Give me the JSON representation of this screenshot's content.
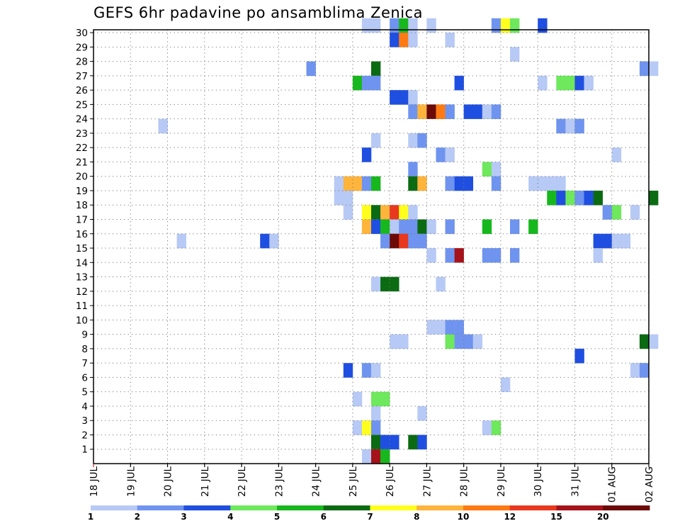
{
  "chart_data": {
    "type": "heatmap",
    "title": "GEFS 6hr padavine po ansamblima Zenica",
    "xlabel": "",
    "ylabel": "",
    "x_tick_labels": [
      "18 JUL",
      "19 JUL",
      "20 JUL",
      "21 JUL",
      "22 JUL",
      "23 JUL",
      "24 JUL",
      "25 JUL",
      "26 JUL",
      "27 JUL",
      "28 JUL",
      "29 JUL",
      "30 JUL",
      "31 JUL",
      "01 AUG",
      "02 AUG"
    ],
    "y_tick_labels": [
      "1",
      "2",
      "3",
      "4",
      "5",
      "6",
      "7",
      "8",
      "9",
      "10",
      "11",
      "12",
      "13",
      "14",
      "15",
      "16",
      "17",
      "18",
      "19",
      "20",
      "21",
      "22",
      "23",
      "24",
      "25",
      "26",
      "27",
      "28",
      "29",
      "30"
    ],
    "xlim": [
      0,
      60
    ],
    "ylim": [
      0,
      30
    ],
    "grid": true,
    "colorbar": {
      "colors": [
        "#b7c9f5",
        "#6f94ef",
        "#1f4fe0",
        "#6ee85c",
        "#17b81d",
        "#0b6b12",
        "#ffff1e",
        "#ffb43c",
        "#ff7a12",
        "#e8391e",
        "#a6121a",
        "#6b0a08"
      ],
      "labels": [
        "1",
        "2",
        "3",
        "4",
        "5",
        "6",
        "7",
        "8",
        "10",
        "12",
        "15",
        "20"
      ]
    },
    "cells": [
      [
        29,
        30,
        0
      ],
      [
        30,
        30,
        0
      ],
      [
        32,
        30,
        1
      ],
      [
        33,
        30,
        4
      ],
      [
        34,
        30,
        0
      ],
      [
        36,
        30,
        0
      ],
      [
        43,
        30,
        1
      ],
      [
        44,
        30,
        6
      ],
      [
        45,
        30,
        3
      ],
      [
        48,
        30,
        2
      ],
      [
        32,
        29,
        2
      ],
      [
        33,
        29,
        8
      ],
      [
        34,
        29,
        0
      ],
      [
        38,
        29,
        0
      ],
      [
        45,
        28,
        0
      ],
      [
        23,
        27,
        1
      ],
      [
        30,
        27,
        5
      ],
      [
        59,
        27,
        1
      ],
      [
        60,
        27,
        0
      ],
      [
        28,
        26,
        4
      ],
      [
        29,
        26,
        1
      ],
      [
        30,
        26,
        1
      ],
      [
        39,
        26,
        2
      ],
      [
        48,
        26,
        0
      ],
      [
        50,
        26,
        3
      ],
      [
        51,
        26,
        3
      ],
      [
        52,
        26,
        2
      ],
      [
        53,
        26,
        0
      ],
      [
        32,
        25,
        2
      ],
      [
        33,
        25,
        2
      ],
      [
        34,
        25,
        0
      ],
      [
        34,
        24,
        1
      ],
      [
        35,
        24,
        7
      ],
      [
        36,
        24,
        11
      ],
      [
        37,
        24,
        8
      ],
      [
        38,
        24,
        1
      ],
      [
        40,
        24,
        2
      ],
      [
        41,
        24,
        2
      ],
      [
        42,
        24,
        0
      ],
      [
        43,
        24,
        1
      ],
      [
        7,
        23,
        0
      ],
      [
        50,
        23,
        1
      ],
      [
        51,
        23,
        0
      ],
      [
        52,
        23,
        1
      ],
      [
        30,
        22,
        0
      ],
      [
        34,
        22,
        0
      ],
      [
        35,
        22,
        1
      ],
      [
        29,
        21,
        2
      ],
      [
        37,
        21,
        1
      ],
      [
        38,
        21,
        0
      ],
      [
        56,
        21,
        0
      ],
      [
        34,
        20,
        1
      ],
      [
        42,
        20,
        3
      ],
      [
        43,
        20,
        0
      ],
      [
        26,
        19,
        0
      ],
      [
        27,
        19,
        7
      ],
      [
        28,
        19,
        7
      ],
      [
        29,
        19,
        1
      ],
      [
        30,
        19,
        4
      ],
      [
        34,
        19,
        5
      ],
      [
        35,
        19,
        7
      ],
      [
        38,
        19,
        1
      ],
      [
        39,
        19,
        2
      ],
      [
        40,
        19,
        2
      ],
      [
        43,
        19,
        1
      ],
      [
        47,
        19,
        0
      ],
      [
        48,
        19,
        0
      ],
      [
        49,
        19,
        0
      ],
      [
        50,
        19,
        0
      ],
      [
        26,
        18,
        0
      ],
      [
        27,
        18,
        0
      ],
      [
        49,
        18,
        4
      ],
      [
        50,
        18,
        2
      ],
      [
        51,
        18,
        3
      ],
      [
        52,
        18,
        1
      ],
      [
        53,
        18,
        2
      ],
      [
        54,
        18,
        5
      ],
      [
        60,
        18,
        5
      ],
      [
        27,
        17,
        0
      ],
      [
        29,
        17,
        6
      ],
      [
        30,
        17,
        5
      ],
      [
        31,
        17,
        7
      ],
      [
        32,
        17,
        9
      ],
      [
        33,
        17,
        6
      ],
      [
        34,
        17,
        0
      ],
      [
        55,
        17,
        1
      ],
      [
        56,
        17,
        3
      ],
      [
        58,
        17,
        0
      ],
      [
        29,
        16,
        7
      ],
      [
        30,
        16,
        2
      ],
      [
        31,
        16,
        4
      ],
      [
        32,
        16,
        0
      ],
      [
        33,
        16,
        1
      ],
      [
        34,
        16,
        1
      ],
      [
        35,
        16,
        5
      ],
      [
        36,
        16,
        0
      ],
      [
        38,
        16,
        1
      ],
      [
        42,
        16,
        4
      ],
      [
        45,
        16,
        1
      ],
      [
        47,
        16,
        4
      ],
      [
        9,
        15,
        0
      ],
      [
        18,
        15,
        2
      ],
      [
        19,
        15,
        0
      ],
      [
        31,
        15,
        1
      ],
      [
        32,
        15,
        11
      ],
      [
        33,
        15,
        9
      ],
      [
        34,
        15,
        1
      ],
      [
        35,
        15,
        1
      ],
      [
        54,
        15,
        2
      ],
      [
        55,
        15,
        2
      ],
      [
        56,
        15,
        0
      ],
      [
        57,
        15,
        0
      ],
      [
        36,
        14,
        0
      ],
      [
        38,
        14,
        1
      ],
      [
        39,
        14,
        10
      ],
      [
        42,
        14,
        1
      ],
      [
        43,
        14,
        1
      ],
      [
        45,
        14,
        1
      ],
      [
        54,
        14,
        0
      ],
      [
        30,
        12,
        0
      ],
      [
        31,
        12,
        5
      ],
      [
        32,
        12,
        5
      ],
      [
        37,
        12,
        0
      ],
      [
        36,
        9,
        0
      ],
      [
        37,
        9,
        0
      ],
      [
        38,
        9,
        1
      ],
      [
        39,
        9,
        1
      ],
      [
        32,
        8,
        0
      ],
      [
        33,
        8,
        0
      ],
      [
        38,
        8,
        3
      ],
      [
        39,
        8,
        1
      ],
      [
        40,
        8,
        1
      ],
      [
        41,
        8,
        0
      ],
      [
        59,
        8,
        5
      ],
      [
        60,
        8,
        0
      ],
      [
        52,
        7,
        2
      ],
      [
        27,
        6,
        2
      ],
      [
        29,
        6,
        1
      ],
      [
        30,
        6,
        0
      ],
      [
        58,
        6,
        0
      ],
      [
        59,
        6,
        1
      ],
      [
        44,
        5,
        0
      ],
      [
        28,
        4,
        0
      ],
      [
        30,
        4,
        3
      ],
      [
        31,
        4,
        3
      ],
      [
        30,
        3,
        0
      ],
      [
        35,
        3,
        0
      ],
      [
        28,
        2,
        0
      ],
      [
        29,
        2,
        6
      ],
      [
        30,
        2,
        1
      ],
      [
        42,
        2,
        0
      ],
      [
        43,
        2,
        3
      ],
      [
        30,
        1,
        5
      ],
      [
        31,
        1,
        2
      ],
      [
        32,
        1,
        2
      ],
      [
        34,
        1,
        5
      ],
      [
        35,
        1,
        2
      ],
      [
        29,
        0,
        0
      ],
      [
        30,
        0,
        10
      ],
      [
        31,
        0,
        4
      ]
    ]
  }
}
